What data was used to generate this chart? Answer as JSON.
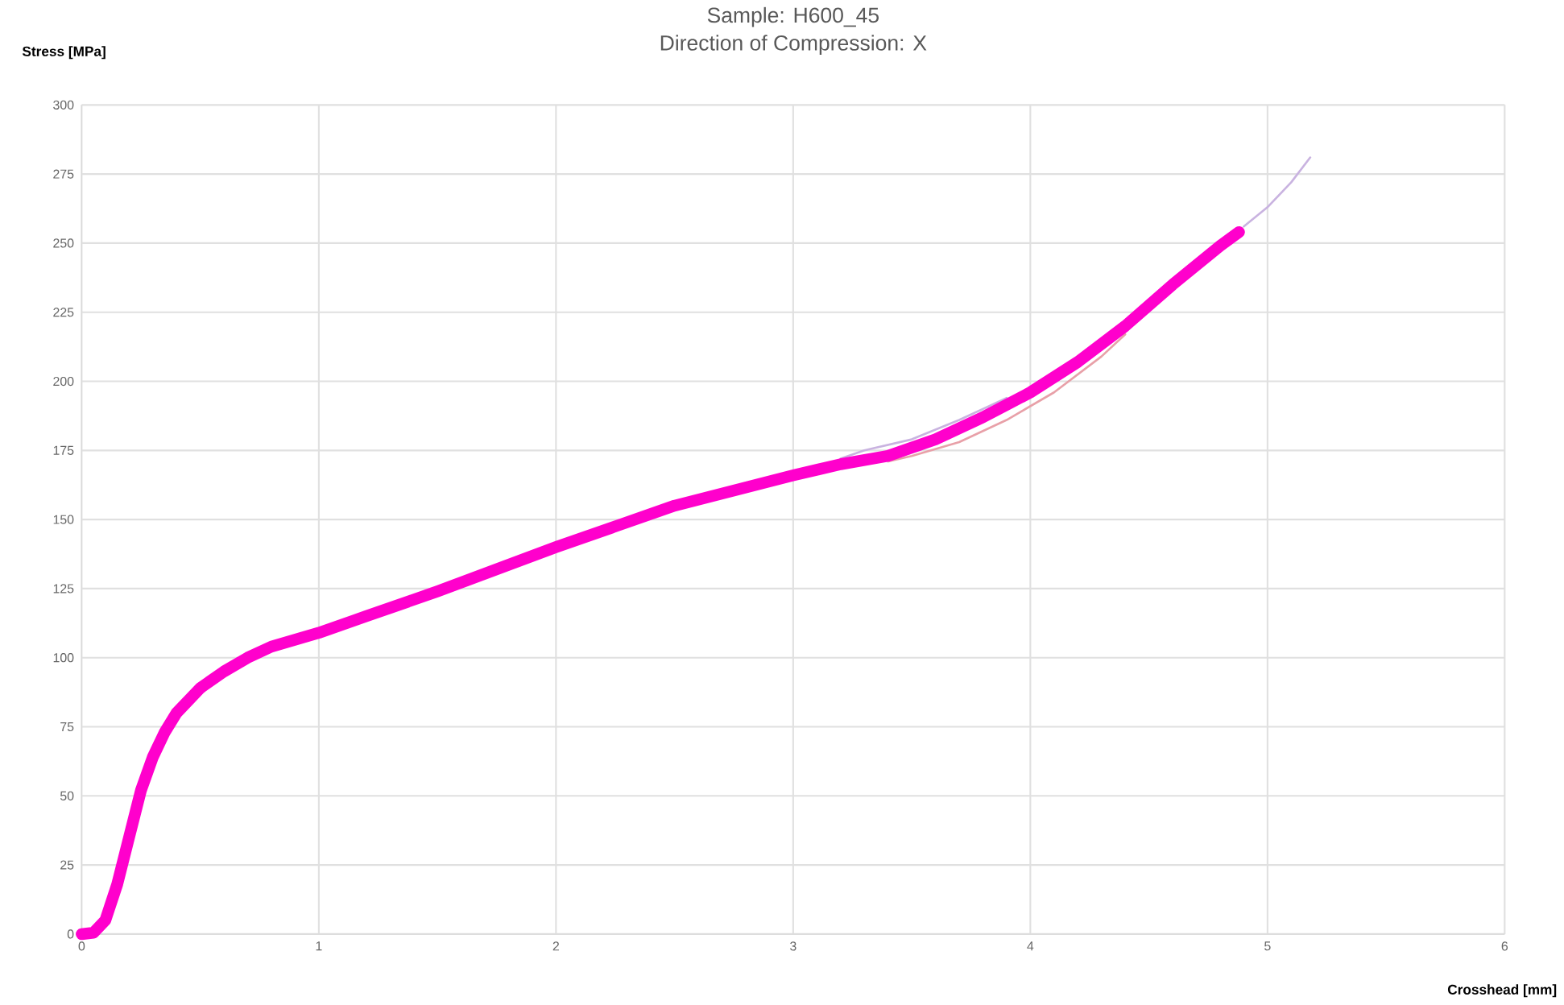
{
  "chart_data": {
    "type": "line",
    "title": "Sample: H600_45",
    "subtitle": "Direction of Compression: X",
    "xlabel": "Crosshead [mm]",
    "ylabel": "Stress [MPa]",
    "xlim": [
      0,
      6
    ],
    "ylim": [
      0,
      300
    ],
    "xticks": [
      0,
      1,
      2,
      3,
      4,
      5,
      6
    ],
    "yticks": [
      0,
      25,
      50,
      75,
      100,
      125,
      150,
      175,
      200,
      225,
      250,
      275,
      300
    ],
    "grid": true,
    "marker": "none",
    "line_style": "solid",
    "series": [
      {
        "color": "#c9b3e0",
        "x": [
          3.2,
          3.3,
          3.5,
          3.7,
          3.9,
          4.1,
          4.3,
          4.5,
          4.7,
          4.9,
          5.0,
          5.1,
          5.18
        ],
        "values": [
          172,
          175,
          179,
          186,
          194,
          null,
          null,
          null,
          null,
          256,
          263,
          272,
          281
        ]
      },
      {
        "color": "#e8a0a8",
        "x": [
          3.4,
          3.5,
          3.7,
          3.9,
          4.1,
          4.3,
          4.4
        ],
        "values": [
          171,
          173,
          178,
          186,
          196,
          209,
          217
        ]
      },
      {
        "color": "#ff00cc",
        "x": [
          0,
          0.05,
          0.1,
          0.15,
          0.2,
          0.25,
          0.3,
          0.35,
          0.4,
          0.5,
          0.6,
          0.7,
          0.8,
          1.0,
          1.2,
          1.5,
          2.0,
          2.5,
          3.0,
          3.2,
          3.4,
          3.6,
          3.8,
          4.0,
          4.2,
          4.4,
          4.6,
          4.8,
          4.88
        ],
        "values": [
          0,
          0.5,
          5,
          18,
          35,
          52,
          64,
          73,
          80,
          89,
          95,
          100,
          104,
          109,
          115,
          124,
          140,
          155,
          166,
          170,
          173,
          179,
          187,
          196,
          207,
          220,
          235,
          249,
          254
        ]
      }
    ]
  }
}
